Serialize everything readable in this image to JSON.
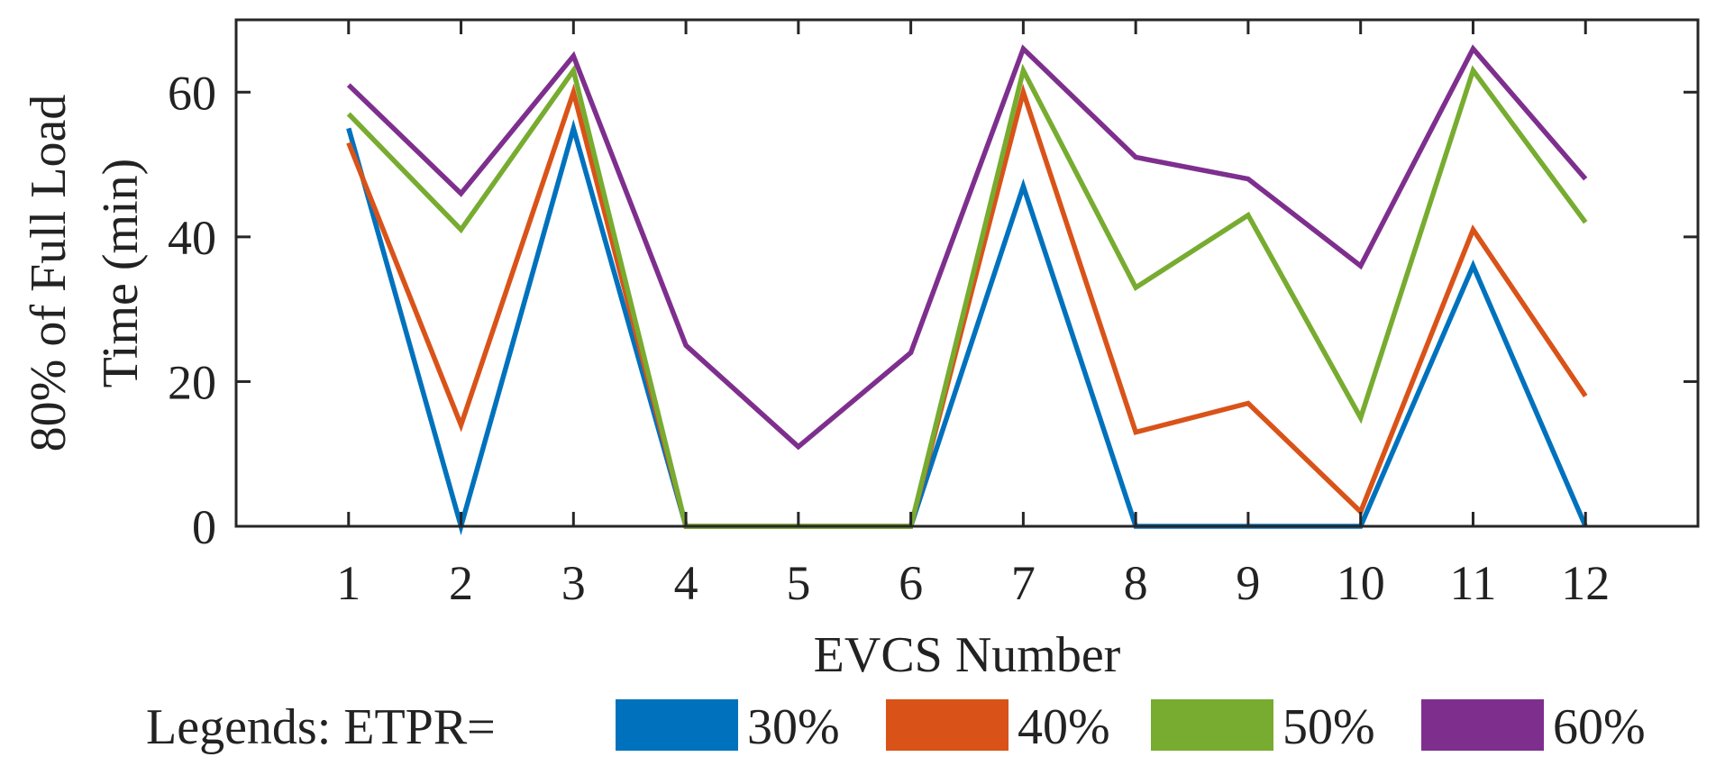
{
  "chart_data": {
    "type": "line",
    "title": "",
    "xlabel": "EVCS Number",
    "ylabel_lines": [
      "80% of Full Load",
      "Time (min)"
    ],
    "categories": [
      "1",
      "2",
      "3",
      "4",
      "5",
      "6",
      "7",
      "8",
      "9",
      "10",
      "11",
      "12"
    ],
    "x": [
      1,
      2,
      3,
      4,
      5,
      6,
      7,
      8,
      9,
      10,
      11,
      12
    ],
    "xlim": [
      0,
      13
    ],
    "ylim": [
      0,
      70
    ],
    "yticks": [
      0,
      20,
      40,
      60
    ],
    "ytick_labels": [
      "0",
      "20",
      "40",
      "60"
    ],
    "grid": false,
    "legend": {
      "placement": "bottom",
      "prefix": "Legends: ETPR="
    },
    "series": [
      {
        "name": "30%",
        "color": "#0072BD",
        "values": [
          55,
          0,
          55,
          0,
          0,
          0,
          47,
          0,
          0,
          0,
          36,
          0
        ]
      },
      {
        "name": "40%",
        "color": "#D95319",
        "values": [
          53,
          14,
          60,
          0,
          0,
          0,
          60,
          13,
          17,
          2,
          41,
          18
        ]
      },
      {
        "name": "50%",
        "color": "#77AC30",
        "values": [
          57,
          41,
          63,
          0,
          0,
          0,
          63,
          33,
          43,
          15,
          63,
          42
        ]
      },
      {
        "name": "60%",
        "color": "#7E2F8E",
        "values": [
          61,
          46,
          65,
          25,
          11,
          24,
          66,
          51,
          48,
          36,
          66,
          48
        ]
      }
    ]
  }
}
